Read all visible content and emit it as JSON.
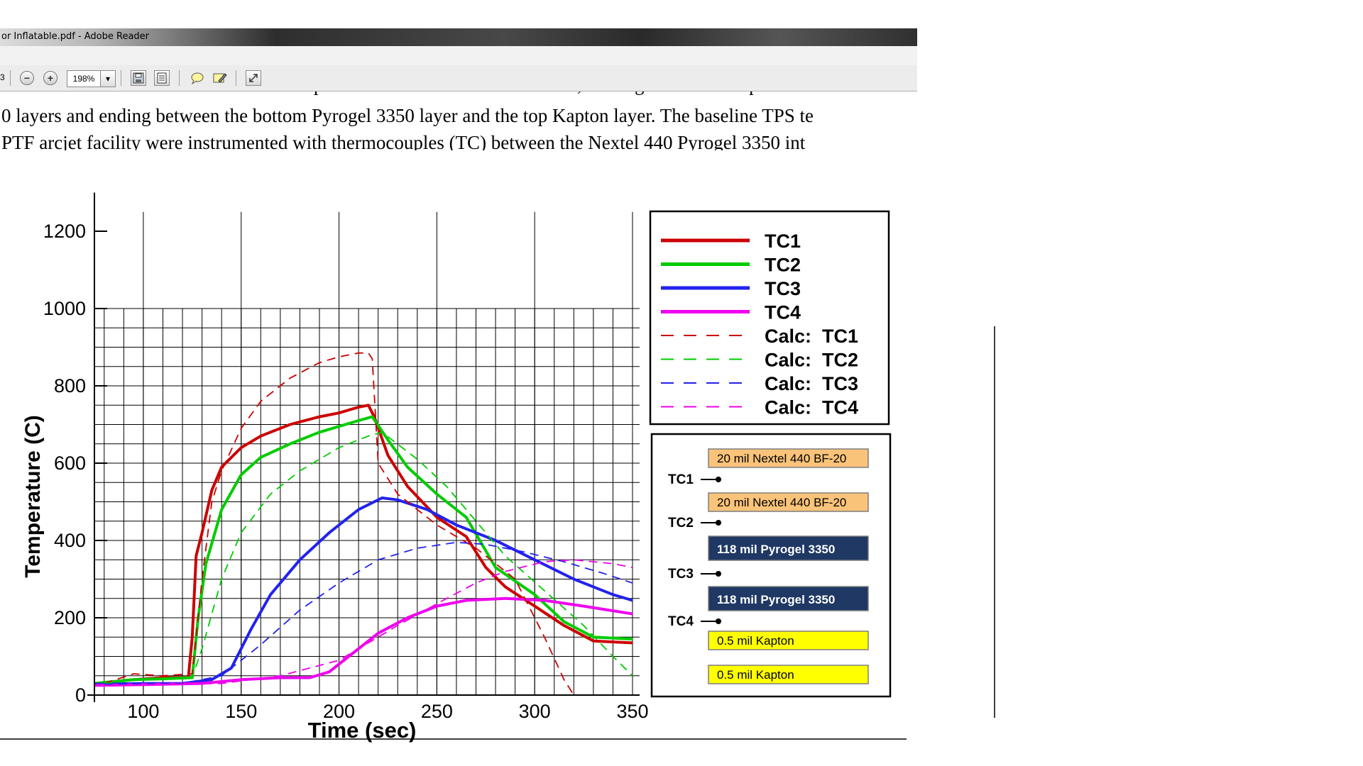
{
  "window": {
    "title": "or Inflatable.pdf - Adobe Reader"
  },
  "toolbar": {
    "page_fragment": "3",
    "zoom_out": "−",
    "zoom_in": "+",
    "zoom_value": "198%",
    "zoom_dropdown": "▾",
    "icons": [
      "zoom-out-icon",
      "zoom-in-icon",
      "save-icon",
      "page-icon",
      "comment-icon",
      "sign-icon",
      "fullscreen-icon"
    ]
  },
  "document": {
    "line1": "MEL were instrumented with thermocouples between each of the materials, starting behind the top two",
    "line2": "0 layers and ending between the bottom Pyrogel 3350 layer and the top Kapton layer.  The baseline TPS te",
    "line3": "PTF arcjet facility were instrumented with thermocouples (TC) between the Nextel 440 Pyrogel 3350 int"
  },
  "chart_data": {
    "type": "line",
    "xlabel": "Time (sec)",
    "ylabel": "Temperature (C)",
    "xlim": [
      75,
      350
    ],
    "ylim": [
      0,
      1200
    ],
    "x_ticks": [
      100,
      150,
      200,
      250,
      300,
      350
    ],
    "y_ticks": [
      0,
      200,
      400,
      600,
      800,
      1000,
      1200
    ],
    "grid": true,
    "legend_position": "right",
    "series": [
      {
        "name": "TC1",
        "style": "solid",
        "color": "#cc0000",
        "points": [
          [
            75,
            30
          ],
          [
            95,
            40
          ],
          [
            110,
            45
          ],
          [
            123,
            45
          ],
          [
            125,
            150
          ],
          [
            127,
            360
          ],
          [
            130,
            420
          ],
          [
            135,
            530
          ],
          [
            140,
            590
          ],
          [
            150,
            640
          ],
          [
            160,
            670
          ],
          [
            175,
            700
          ],
          [
            190,
            720
          ],
          [
            200,
            730
          ],
          [
            210,
            745
          ],
          [
            215,
            750
          ],
          [
            218,
            720
          ],
          [
            225,
            620
          ],
          [
            235,
            540
          ],
          [
            250,
            460
          ],
          [
            265,
            410
          ],
          [
            275,
            330
          ],
          [
            285,
            280
          ],
          [
            300,
            230
          ],
          [
            315,
            180
          ],
          [
            330,
            140
          ],
          [
            350,
            135
          ]
        ]
      },
      {
        "name": "TC2",
        "style": "solid",
        "color": "#00cc00",
        "points": [
          [
            75,
            30
          ],
          [
            95,
            40
          ],
          [
            110,
            42
          ],
          [
            125,
            45
          ],
          [
            128,
            200
          ],
          [
            132,
            340
          ],
          [
            140,
            480
          ],
          [
            150,
            570
          ],
          [
            160,
            615
          ],
          [
            175,
            650
          ],
          [
            190,
            680
          ],
          [
            200,
            695
          ],
          [
            210,
            710
          ],
          [
            217,
            720
          ],
          [
            225,
            660
          ],
          [
            235,
            590
          ],
          [
            250,
            520
          ],
          [
            265,
            460
          ],
          [
            280,
            330
          ],
          [
            300,
            260
          ],
          [
            315,
            190
          ],
          [
            330,
            150
          ],
          [
            350,
            145
          ]
        ]
      },
      {
        "name": "TC3",
        "style": "solid",
        "color": "#2222ee",
        "points": [
          [
            75,
            28
          ],
          [
            100,
            30
          ],
          [
            120,
            30
          ],
          [
            135,
            40
          ],
          [
            145,
            70
          ],
          [
            155,
            170
          ],
          [
            165,
            260
          ],
          [
            180,
            350
          ],
          [
            195,
            420
          ],
          [
            210,
            480
          ],
          [
            222,
            510
          ],
          [
            230,
            505
          ],
          [
            245,
            480
          ],
          [
            260,
            440
          ],
          [
            280,
            400
          ],
          [
            300,
            350
          ],
          [
            320,
            300
          ],
          [
            340,
            260
          ],
          [
            350,
            245
          ]
        ]
      },
      {
        "name": "TC4",
        "style": "solid",
        "color": "#ee00ee",
        "points": [
          [
            75,
            25
          ],
          [
            100,
            27
          ],
          [
            130,
            30
          ],
          [
            150,
            40
          ],
          [
            170,
            45
          ],
          [
            185,
            45
          ],
          [
            195,
            60
          ],
          [
            205,
            100
          ],
          [
            220,
            160
          ],
          [
            235,
            200
          ],
          [
            250,
            230
          ],
          [
            265,
            245
          ],
          [
            285,
            250
          ],
          [
            305,
            245
          ],
          [
            325,
            230
          ],
          [
            350,
            210
          ]
        ]
      },
      {
        "name": "Calc:  TC1",
        "style": "dashed",
        "color": "#cc0000",
        "points": [
          [
            80,
            30
          ],
          [
            95,
            55
          ],
          [
            110,
            50
          ],
          [
            125,
            55
          ],
          [
            130,
            300
          ],
          [
            135,
            500
          ],
          [
            140,
            580
          ],
          [
            150,
            690
          ],
          [
            160,
            760
          ],
          [
            175,
            820
          ],
          [
            190,
            860
          ],
          [
            200,
            875
          ],
          [
            210,
            885
          ],
          [
            215,
            885
          ],
          [
            217,
            870
          ],
          [
            220,
            600
          ],
          [
            230,
            520
          ],
          [
            250,
            440
          ],
          [
            270,
            380
          ],
          [
            290,
            300
          ],
          [
            305,
            150
          ],
          [
            315,
            40
          ],
          [
            320,
            0
          ]
        ]
      },
      {
        "name": "Calc:  TC2",
        "style": "dashed",
        "color": "#00cc00",
        "points": [
          [
            80,
            30
          ],
          [
            100,
            40
          ],
          [
            125,
            45
          ],
          [
            130,
            120
          ],
          [
            140,
            300
          ],
          [
            150,
            420
          ],
          [
            165,
            520
          ],
          [
            180,
            580
          ],
          [
            200,
            640
          ],
          [
            215,
            670
          ],
          [
            222,
            680
          ],
          [
            240,
            610
          ],
          [
            255,
            540
          ],
          [
            270,
            450
          ],
          [
            285,
            360
          ],
          [
            305,
            270
          ],
          [
            325,
            180
          ],
          [
            340,
            100
          ],
          [
            350,
            50
          ]
        ]
      },
      {
        "name": "Calc:  TC3",
        "style": "dashed",
        "color": "#2222ee",
        "points": [
          [
            80,
            28
          ],
          [
            120,
            30
          ],
          [
            140,
            50
          ],
          [
            160,
            130
          ],
          [
            180,
            220
          ],
          [
            200,
            290
          ],
          [
            220,
            350
          ],
          [
            240,
            380
          ],
          [
            260,
            395
          ],
          [
            275,
            390
          ],
          [
            295,
            370
          ],
          [
            315,
            345
          ],
          [
            335,
            315
          ],
          [
            350,
            290
          ]
        ]
      },
      {
        "name": "Calc:  TC4",
        "style": "dashed",
        "color": "#ee00ee",
        "points": [
          [
            80,
            25
          ],
          [
            140,
            30
          ],
          [
            170,
            50
          ],
          [
            200,
            90
          ],
          [
            230,
            180
          ],
          [
            255,
            250
          ],
          [
            270,
            290
          ],
          [
            285,
            320
          ],
          [
            305,
            345
          ],
          [
            320,
            350
          ],
          [
            340,
            340
          ],
          [
            350,
            330
          ]
        ]
      }
    ]
  },
  "layers": {
    "items": [
      {
        "label": "20 mil Nextel 440 BF-20",
        "fill": "#f9c37a",
        "text_color": "#000000"
      },
      {
        "label": "20 mil Nextel 440 BF-20",
        "fill": "#f9c37a",
        "text_color": "#000000"
      },
      {
        "label": "118 mil Pyrogel 3350",
        "fill": "#1f3864",
        "text_color": "#ffffff"
      },
      {
        "label": "118 mil Pyrogel 3350",
        "fill": "#1f3864",
        "text_color": "#ffffff"
      },
      {
        "label": "0.5 mil Kapton",
        "fill": "#ffff00",
        "text_color": "#000000"
      },
      {
        "label": "0.5 mil Kapton",
        "fill": "#ffff00",
        "text_color": "#000000"
      }
    ],
    "markers": [
      "TC1",
      "TC2",
      "TC3",
      "TC4"
    ]
  }
}
